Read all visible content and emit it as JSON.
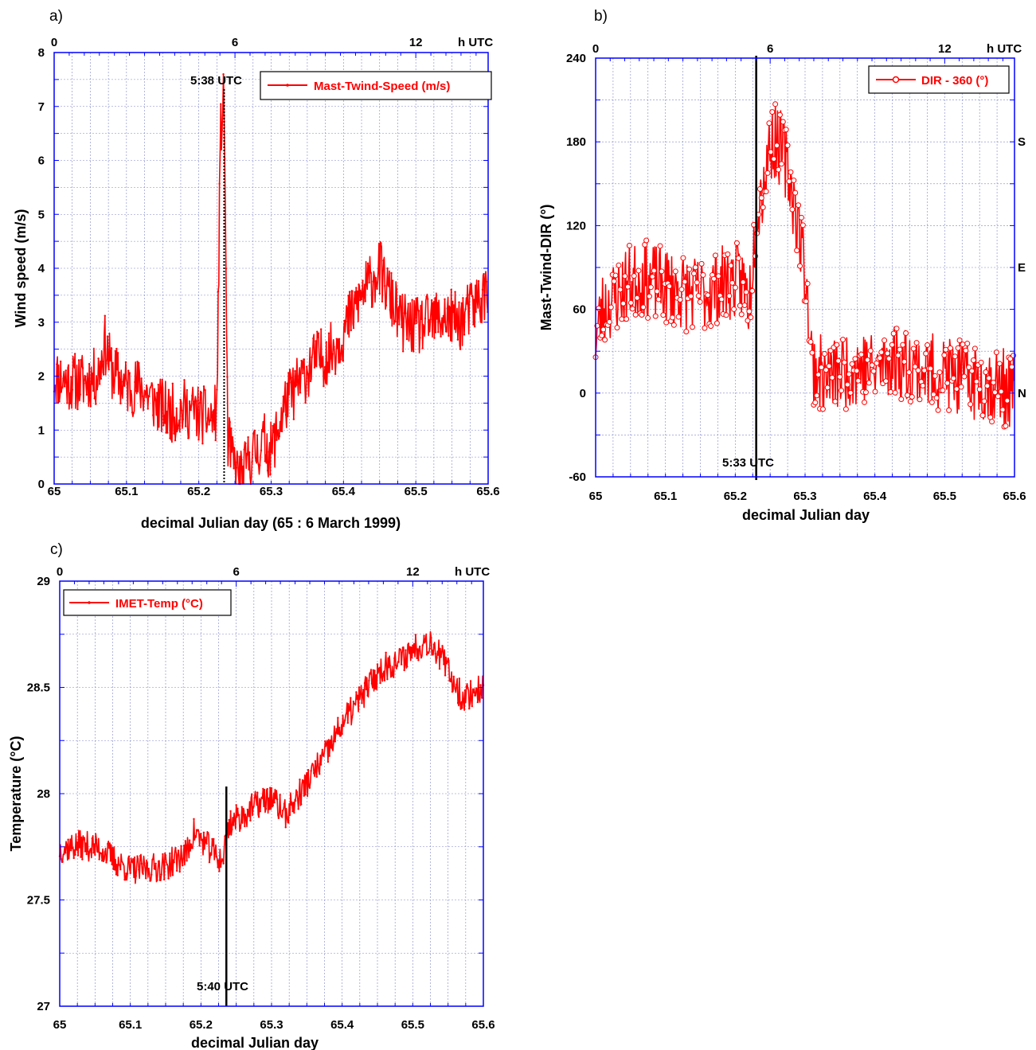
{
  "colors": {
    "series": "#ff0000",
    "frame": "#0000ff",
    "grid": "#7f86c9",
    "marker_line": "#000000"
  },
  "chart_data": [
    {
      "panel": "a)",
      "type": "line",
      "xlabel": "decimal Julian day (65 : 6 March 1999)",
      "ylabel": "Wind speed (m/s)",
      "xlim": [
        65,
        65.6
      ],
      "ylim": [
        0,
        8
      ],
      "x_ticks": [
        "65",
        "65.1",
        "65.2",
        "65.3",
        "65.4",
        "65.5",
        "65.6"
      ],
      "y_ticks": [
        "0",
        "1",
        "2",
        "3",
        "4",
        "5",
        "6",
        "7",
        "8"
      ],
      "top_axis": {
        "unit": "h UTC",
        "ticks": [
          {
            "label": "0",
            "hours": 0
          },
          {
            "label": "6",
            "hours": 6
          },
          {
            "label": "12",
            "hours": 12
          }
        ]
      },
      "grid": true,
      "legend": {
        "position": "top-right",
        "entries": [
          "Mast-Twind-Speed (m/s)"
        ]
      },
      "marker_line": {
        "x": 65.235,
        "label": "5:38 UTC",
        "style": "dotted"
      },
      "series": [
        {
          "name": "Mast-Twind-Speed (m/s)",
          "marker": "dot",
          "x": [
            65.0,
            65.02,
            65.04,
            65.06,
            65.07,
            65.08,
            65.1,
            65.12,
            65.14,
            65.16,
            65.18,
            65.2,
            65.22,
            65.225,
            65.23,
            65.235,
            65.24,
            65.25,
            65.26,
            65.27,
            65.28,
            65.29,
            65.3,
            65.32,
            65.34,
            65.36,
            65.38,
            65.4,
            65.42,
            65.44,
            65.45,
            65.46,
            65.48,
            65.5,
            65.52,
            65.54,
            65.56,
            65.58,
            65.6
          ],
          "values": [
            2.0,
            1.9,
            1.9,
            2.0,
            2.6,
            2.1,
            1.8,
            1.8,
            1.5,
            1.3,
            1.4,
            1.3,
            1.2,
            1.4,
            6.5,
            7.2,
            0.8,
            0.3,
            0.1,
            0.5,
            0.6,
            0.8,
            0.6,
            1.5,
            1.9,
            2.3,
            2.4,
            2.8,
            3.4,
            3.8,
            4.0,
            3.6,
            3.0,
            2.9,
            3.0,
            3.1,
            3.0,
            3.3,
            3.6
          ],
          "noise": 0.55
        }
      ]
    },
    {
      "panel": "b)",
      "type": "line",
      "xlabel": "decimal Julian day",
      "ylabel": "Mast-Twind-DIR  (°)",
      "xlim": [
        65,
        65.6
      ],
      "ylim": [
        -60,
        240
      ],
      "x_ticks": [
        "65",
        "65.1",
        "65.2",
        "65.3",
        "65.4",
        "65.5",
        "65.6"
      ],
      "y_ticks": [
        "-60",
        "0",
        "60",
        "120",
        "180",
        "240"
      ],
      "top_axis": {
        "unit": "h UTC",
        "ticks": [
          {
            "label": "0",
            "hours": 0
          },
          {
            "label": "6",
            "hours": 6
          },
          {
            "label": "12",
            "hours": 12
          }
        ]
      },
      "right_labels": [
        {
          "label": "N",
          "value": 0
        },
        {
          "label": "E",
          "value": 90
        },
        {
          "label": "S",
          "value": 180
        }
      ],
      "grid": true,
      "legend": {
        "position": "top-right",
        "entries": [
          "DIR - 360 (°)"
        ]
      },
      "marker_line": {
        "x": 65.23,
        "label": "5:33 UTC",
        "style": "solid"
      },
      "series": [
        {
          "name": "DIR - 360 (°)",
          "marker": "circle",
          "x": [
            65.0,
            65.01,
            65.03,
            65.05,
            65.07,
            65.09,
            65.11,
            65.13,
            65.15,
            65.17,
            65.19,
            65.21,
            65.22,
            65.23,
            65.24,
            65.25,
            65.26,
            65.27,
            65.28,
            65.29,
            65.3,
            65.31,
            65.33,
            65.35,
            65.38,
            65.4,
            65.42,
            65.45,
            65.48,
            65.5,
            65.52,
            65.55,
            65.58,
            65.6
          ],
          "values": [
            40,
            60,
            70,
            80,
            82,
            78,
            75,
            72,
            70,
            75,
            80,
            80,
            65,
            130,
            150,
            180,
            180,
            170,
            150,
            120,
            90,
            20,
            10,
            15,
            20,
            15,
            25,
            20,
            15,
            15,
            10,
            8,
            5,
            0
          ],
          "noise": 28
        }
      ]
    },
    {
      "panel": "c)",
      "type": "line",
      "xlabel": "decimal Julian day",
      "ylabel": "Temperature  (°C)",
      "xlim": [
        65,
        65.6
      ],
      "ylim": [
        27,
        29
      ],
      "x_ticks": [
        "65",
        "65.1",
        "65.2",
        "65.3",
        "65.4",
        "65.5",
        "65.6"
      ],
      "y_ticks": [
        "27",
        "27.5",
        "28",
        "28.5",
        "29"
      ],
      "top_axis": {
        "unit": "h UTC",
        "ticks": [
          {
            "label": "0",
            "hours": 0
          },
          {
            "label": "6",
            "hours": 6
          },
          {
            "label": "12",
            "hours": 12
          }
        ]
      },
      "grid": true,
      "legend": {
        "position": "top-left",
        "entries": [
          "IMET-Temp (°C)"
        ]
      },
      "marker_line": {
        "x": 65.236,
        "label": "5:40 UTC",
        "style": "solid"
      },
      "series": [
        {
          "name": "IMET-Temp (°C)",
          "marker": "dot",
          "x": [
            65.0,
            65.03,
            65.06,
            65.08,
            65.1,
            65.13,
            65.15,
            65.18,
            65.19,
            65.21,
            65.23,
            65.24,
            65.26,
            65.28,
            65.3,
            65.32,
            65.34,
            65.36,
            65.38,
            65.4,
            65.42,
            65.44,
            65.46,
            65.48,
            65.5,
            65.52,
            65.53,
            65.55,
            65.57,
            65.6
          ],
          "values": [
            27.74,
            27.76,
            27.74,
            27.68,
            27.64,
            27.65,
            27.66,
            27.72,
            27.82,
            27.75,
            27.68,
            27.86,
            27.9,
            27.95,
            27.98,
            27.9,
            28.0,
            28.1,
            28.2,
            28.33,
            28.42,
            28.52,
            28.6,
            28.62,
            28.68,
            28.72,
            28.7,
            28.58,
            28.45,
            28.5
          ],
          "noise": 0.07
        }
      ]
    }
  ]
}
